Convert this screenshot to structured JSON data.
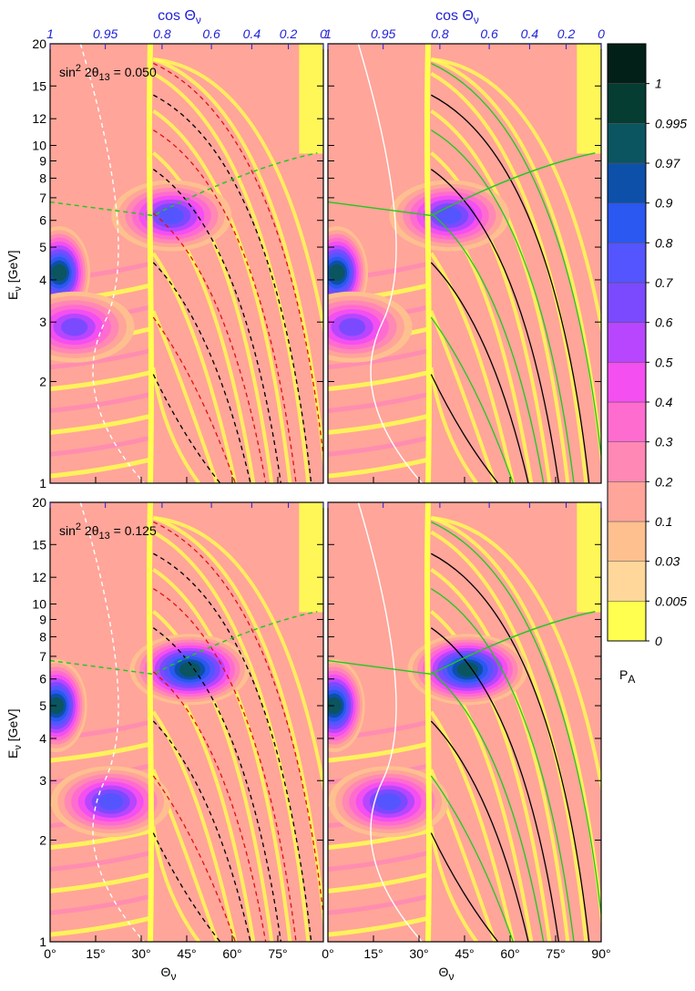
{
  "chart_data": {
    "type": "heatmap",
    "panels": [
      {
        "id": "top-left",
        "annotation": {
          "prefix": "sin",
          "sup": "2",
          "mid": " 2θ",
          "sub": "13",
          "suffix": " = 0.050"
        },
        "peaks": [
          {
            "theta": 3,
            "E": 4.2,
            "value": 0.99
          },
          {
            "theta": 40,
            "E": 6.2,
            "value": 0.8
          },
          {
            "theta": 8,
            "E": 2.9,
            "value": 0.7
          }
        ]
      },
      {
        "id": "top-right",
        "annotation": null,
        "peaks": [
          {
            "theta": 3,
            "E": 4.2,
            "value": 0.99
          },
          {
            "theta": 40,
            "E": 6.2,
            "value": 0.8
          },
          {
            "theta": 8,
            "E": 2.9,
            "value": 0.7
          }
        ]
      },
      {
        "id": "bottom-left",
        "annotation": {
          "prefix": "sin",
          "sup": "2",
          "mid": " 2θ",
          "sub": "13",
          "suffix": " = 0.125"
        },
        "peaks": [
          {
            "theta": 2,
            "E": 5.0,
            "value": 0.995
          },
          {
            "theta": 46,
            "E": 6.4,
            "value": 0.995
          },
          {
            "theta": 20,
            "E": 2.6,
            "value": 0.8
          }
        ]
      },
      {
        "id": "bottom-right",
        "annotation": null,
        "peaks": [
          {
            "theta": 2,
            "E": 5.0,
            "value": 0.995
          },
          {
            "theta": 46,
            "E": 6.4,
            "value": 0.995
          },
          {
            "theta": 20,
            "E": 2.6,
            "value": 0.8
          }
        ]
      }
    ],
    "x_axis": {
      "label": "Θ",
      "label_sub": "ν",
      "range": [
        0,
        90
      ],
      "tick_labels": [
        "0°",
        "15°",
        "30°",
        "45°",
        "60°",
        "75°",
        "90°"
      ],
      "tick_values": [
        0,
        15,
        30,
        45,
        60,
        75,
        90
      ]
    },
    "top_axis": {
      "label": "cos Θ",
      "label_sub": "ν",
      "tick_labels": [
        "1",
        "0.95",
        "0.8",
        "0.6",
        "0.4",
        "0.2",
        "0"
      ],
      "tick_values": [
        1,
        0.95,
        0.8,
        0.6,
        0.4,
        0.2,
        0
      ]
    },
    "y_axis": {
      "label": "E",
      "label_sub": "ν",
      "label_unit": " [GeV]",
      "scale": "log",
      "range": [
        1,
        20
      ],
      "tick_labels": [
        "1",
        "2",
        "3",
        "4",
        "5",
        "6",
        "7",
        "8",
        "9",
        "10",
        "12",
        "15",
        "20"
      ],
      "tick_values": [
        1,
        2,
        3,
        4,
        5,
        6,
        7,
        8,
        9,
        10,
        12,
        15,
        20
      ]
    },
    "colorbar": {
      "label": "P",
      "label_sub": "A",
      "levels": [
        "0",
        "0.005",
        "0.03",
        "0.1",
        "0.2",
        "0.3",
        "0.4",
        "0.5",
        "0.6",
        "0.7",
        "0.8",
        "0.9",
        "0.97",
        "0.995",
        "1"
      ],
      "colors": [
        "#ffff50",
        "#ffd79a",
        "#ffc090",
        "#ffa59a",
        "#ff88b4",
        "#ff6ccf",
        "#f44ff1",
        "#b846ff",
        "#7b4aff",
        "#5555ff",
        "#2a58f0",
        "#0d50aa",
        "#0b5560",
        "#053d32",
        "#022018"
      ]
    },
    "curve_colors": {
      "black": "#000000",
      "green": "#1ec81e",
      "white": "#ffffff",
      "red": "#e01010"
    }
  }
}
